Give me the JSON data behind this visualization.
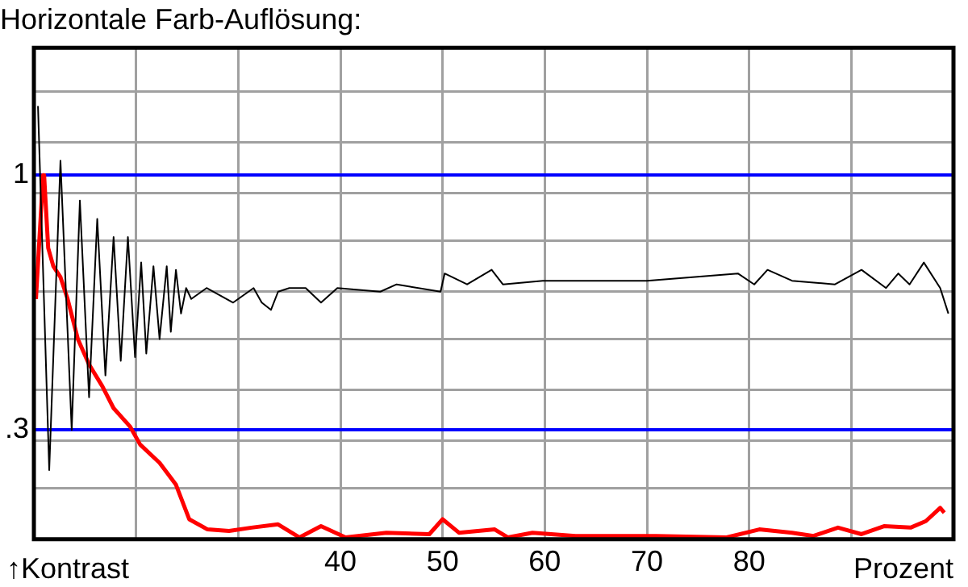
{
  "chart_data": {
    "type": "line",
    "title": "Horizontale Farb-Auflösung:",
    "xlabel": "Prozent",
    "annotations": [
      "↑Kontrast"
    ],
    "xlim": [
      10,
      100
    ],
    "xticks": [
      {
        "value": 20,
        "label": null
      },
      {
        "value": 30,
        "label": null
      },
      40,
      50,
      60,
      70,
      80,
      {
        "value": 90,
        "label": null
      }
    ],
    "ylim": [
      0,
      1.35
    ],
    "yticks": [
      {
        "value": 0.14,
        "label": null
      },
      {
        "value": 0.27,
        "label": null
      },
      {
        "value": 0.3,
        "label": ".3"
      },
      {
        "value": 0.41,
        "label": null
      },
      {
        "value": 0.55,
        "label": null
      },
      {
        "value": 0.68,
        "label": null
      },
      {
        "value": 0.82,
        "label": null
      },
      {
        "value": 0.95,
        "label": null
      },
      {
        "value": 1,
        "label": "1"
      },
      {
        "value": 1.09,
        "label": null
      },
      {
        "value": 1.23,
        "label": null
      }
    ],
    "grid": true,
    "legend": false,
    "marker": "none",
    "line_style": "solid",
    "series": [
      {
        "color": "#000000",
        "x": [
          10.4,
          11.5,
          12.6,
          13.7,
          14.5,
          15.4,
          16.2,
          17.0,
          17.8,
          18.5,
          19.2,
          19.9,
          20.5,
          21.0,
          21.7,
          22.3,
          23.0,
          23.4,
          23.9,
          24.4,
          24.9,
          25.4,
          26.9,
          29.5,
          31.5,
          32.3,
          33.2,
          33.9,
          35,
          36.6,
          38.1,
          39.7,
          43.9,
          45.5,
          49.8,
          50.2,
          52.4,
          54.8,
          55.9,
          59.8,
          70,
          78.9,
          80.5,
          81.8,
          84.2,
          88.4,
          91.0,
          93.4,
          94.6,
          95.7,
          97.1,
          98.7,
          99.5
        ],
        "values": [
          1.19,
          0.19,
          1.04,
          0.3,
          0.93,
          0.39,
          0.88,
          0.45,
          0.83,
          0.49,
          0.83,
          0.5,
          0.76,
          0.51,
          0.75,
          0.55,
          0.75,
          0.57,
          0.74,
          0.62,
          0.69,
          0.66,
          0.69,
          0.65,
          0.69,
          0.65,
          0.63,
          0.68,
          0.69,
          0.69,
          0.65,
          0.69,
          0.68,
          0.7,
          0.68,
          0.73,
          0.7,
          0.74,
          0.7,
          0.71,
          0.71,
          0.73,
          0.7,
          0.74,
          0.71,
          0.7,
          0.74,
          0.69,
          0.73,
          0.7,
          0.76,
          0.69,
          0.62
        ]
      },
      {
        "color": "#ff0000",
        "x": [
          10.2,
          10.9,
          11.0,
          11.4,
          11.9,
          12.6,
          13.3,
          14.3,
          15.4,
          16.7,
          17.8,
          19.4,
          20.4,
          22.3,
          23.9,
          25.2,
          27.0,
          29.1,
          31.3,
          33.9,
          36.0,
          38.1,
          40.5,
          44.5,
          48.7,
          50,
          51.6,
          55.1,
          56.4,
          58.8,
          63.0,
          70,
          70.9,
          77.8,
          81,
          84.2,
          86.3,
          88.7,
          91.0,
          93.2,
          95.8,
          97.3,
          98.7,
          99.1
        ],
        "values": [
          0.66,
          1.0,
          1.0,
          0.8,
          0.75,
          0.72,
          0.66,
          0.55,
          0.48,
          0.42,
          0.36,
          0.31,
          0.26,
          0.21,
          0.15,
          0.055,
          0.027,
          0.023,
          0.032,
          0.041,
          0.005,
          0.036,
          0.005,
          0.018,
          0.014,
          0.055,
          0.018,
          0.027,
          0.005,
          0.018,
          0.009,
          0.009,
          0.009,
          0.005,
          0.027,
          0.018,
          0.009,
          0.032,
          0.014,
          0.036,
          0.032,
          0.05,
          0.086,
          0.073
        ]
      }
    ]
  }
}
